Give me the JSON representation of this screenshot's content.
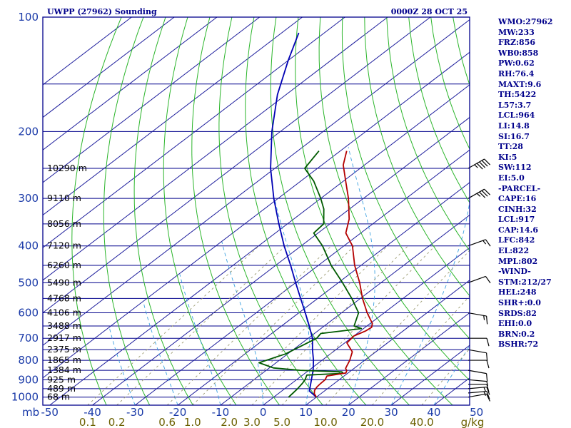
{
  "header": {
    "station": "UWPP (27962) Sounding",
    "valid_time": "0000Z 28 OCT 25"
  },
  "indices": [
    "WMO:27962",
    "MW:233",
    "FRZ:856",
    "WB0:858",
    "PW:0.62",
    "RH:76.4",
    "MAXT:9.6",
    "TH:5422",
    "L57:3.7",
    "LCL:964",
    "LI:14.8",
    "SI:16.7",
    "TT:28",
    "KI:5",
    "SW:112",
    "EI:5.0",
    "-PARCEL-",
    "CAPE:16",
    "CINH:32",
    "LCL:917",
    "CAP:14.6",
    "LFC:842",
    "EL:822",
    "MPL:802",
    "-WIND-",
    "STM:212/27",
    "HEL:248",
    "SHR+:0.0",
    "SRDS:82",
    "EHI:0.0",
    "BRN:0.2",
    "BSHR:72"
  ],
  "axis": {
    "pressure_unit": "mb",
    "pressure_ticks": [
      "100",
      "200",
      "300",
      "400",
      "500",
      "600",
      "700",
      "800",
      "900",
      "1000"
    ],
    "temp_ticks": [
      "-50",
      "-40",
      "-30",
      "-20",
      "-10",
      "0",
      "10",
      "20",
      "30",
      "40",
      "50"
    ],
    "mixing_ratio_ticks": [
      "0.1",
      "0.2",
      "0.6",
      "1.0",
      "2.0",
      "3.0",
      "5.0",
      "10.0",
      "20.0",
      "40.0"
    ],
    "mixing_ratio_unit": "g/kg"
  },
  "colors": {
    "frame": "#00008b",
    "isobar": "#00008b",
    "isotherm": "#1e1e9c",
    "dry_adiabat": "#2bb52b",
    "moist_adiabat": "#3aa0e0",
    "mixing_ratio": "#9a9a70",
    "temperature": "#b40000",
    "dewpoint": "#005a00",
    "parcel": "#0000b4",
    "barbs": "#000000"
  },
  "chart_data": {
    "type": "skew-t",
    "title": "UWPP (27962) Sounding",
    "valid": "0000Z 28 OCT 25",
    "pressure_range_mb": [
      1050,
      100
    ],
    "temperature_range_c": [
      -50,
      50
    ],
    "height_labels": [
      {
        "p": 250,
        "label": "10290 m"
      },
      {
        "p": 300,
        "label": "9110 m"
      },
      {
        "p": 350,
        "label": "8056 m"
      },
      {
        "p": 400,
        "label": "7120 m"
      },
      {
        "p": 450,
        "label": "6260 m"
      },
      {
        "p": 500,
        "label": "5490 m"
      },
      {
        "p": 550,
        "label": "4768 m"
      },
      {
        "p": 600,
        "label": "4106 m"
      },
      {
        "p": 650,
        "label": "3488 m"
      },
      {
        "p": 700,
        "label": "2917 m"
      },
      {
        "p": 750,
        "label": "2375 m"
      },
      {
        "p": 800,
        "label": "1865 m"
      },
      {
        "p": 850,
        "label": "1384 m"
      },
      {
        "p": 900,
        "label": "925 m"
      },
      {
        "p": 950,
        "label": "489 m"
      },
      {
        "p": 1000,
        "label": "68 m"
      }
    ],
    "temperature_profile": [
      {
        "p": 1000,
        "t": 10.0
      },
      {
        "p": 980,
        "t": 8.5
      },
      {
        "p": 960,
        "t": 7.5
      },
      {
        "p": 940,
        "t": 7.0
      },
      {
        "p": 920,
        "t": 6.8
      },
      {
        "p": 900,
        "t": 6.7
      },
      {
        "p": 880,
        "t": 6.0
      },
      {
        "p": 864,
        "t": 9.5
      },
      {
        "p": 852,
        "t": 9.0
      },
      {
        "p": 840,
        "t": 8.0
      },
      {
        "p": 800,
        "t": 6.5
      },
      {
        "p": 760,
        "t": 4.5
      },
      {
        "p": 720,
        "t": 0.5
      },
      {
        "p": 690,
        "t": 0.0
      },
      {
        "p": 670,
        "t": 1.2
      },
      {
        "p": 655,
        "t": 1.5
      },
      {
        "p": 640,
        "t": 0.5
      },
      {
        "p": 600,
        "t": -4.0
      },
      {
        "p": 550,
        "t": -9.5
      },
      {
        "p": 500,
        "t": -15.0
      },
      {
        "p": 450,
        "t": -21.5
      },
      {
        "p": 400,
        "t": -28.0
      },
      {
        "p": 370,
        "t": -33.5
      },
      {
        "p": 340,
        "t": -37.0
      },
      {
        "p": 300,
        "t": -43.5
      },
      {
        "p": 270,
        "t": -49.5
      },
      {
        "p": 245,
        "t": -55.0
      },
      {
        "p": 225,
        "t": -58.5
      }
    ],
    "dewpoint_profile": [
      {
        "p": 1000,
        "t": 3.5
      },
      {
        "p": 970,
        "t": 3.2
      },
      {
        "p": 950,
        "t": 3.0
      },
      {
        "p": 920,
        "t": 2.5
      },
      {
        "p": 900,
        "t": 2.0
      },
      {
        "p": 875,
        "t": 1.0
      },
      {
        "p": 866,
        "t": 9.0
      },
      {
        "p": 858,
        "t": 8.2
      },
      {
        "p": 850,
        "t": -2.0
      },
      {
        "p": 838,
        "t": -9.0
      },
      {
        "p": 812,
        "t": -14.0
      },
      {
        "p": 770,
        "t": -10.5
      },
      {
        "p": 700,
        "t": -8.0
      },
      {
        "p": 680,
        "t": -8.5
      },
      {
        "p": 660,
        "t": -0.5
      },
      {
        "p": 650,
        "t": -3.0
      },
      {
        "p": 600,
        "t": -6.0
      },
      {
        "p": 550,
        "t": -12.0
      },
      {
        "p": 500,
        "t": -19.0
      },
      {
        "p": 450,
        "t": -27.0
      },
      {
        "p": 400,
        "t": -35.0
      },
      {
        "p": 370,
        "t": -41.0
      },
      {
        "p": 350,
        "t": -41.5
      },
      {
        "p": 320,
        "t": -46.0
      },
      {
        "p": 300,
        "t": -50.0
      },
      {
        "p": 270,
        "t": -57.0
      },
      {
        "p": 250,
        "t": -63.0
      },
      {
        "p": 225,
        "t": -65.0
      }
    ],
    "parcel_profile": [
      {
        "p": 1000,
        "t": 10.0
      },
      {
        "p": 964,
        "t": 6.5
      },
      {
        "p": 900,
        "t": 3.5
      },
      {
        "p": 850,
        "t": 1.0
      },
      {
        "p": 800,
        "t": -2.0
      },
      {
        "p": 750,
        "t": -5.5
      },
      {
        "p": 700,
        "t": -9.0
      },
      {
        "p": 650,
        "t": -13.5
      },
      {
        "p": 600,
        "t": -18.5
      },
      {
        "p": 550,
        "t": -24.0
      },
      {
        "p": 500,
        "t": -30.0
      },
      {
        "p": 450,
        "t": -36.5
      },
      {
        "p": 400,
        "t": -44.0
      },
      {
        "p": 350,
        "t": -52.0
      },
      {
        "p": 300,
        "t": -61.0
      },
      {
        "p": 250,
        "t": -71.0
      },
      {
        "p": 200,
        "t": -82.0
      },
      {
        "p": 160,
        "t": -92.0
      },
      {
        "p": 130,
        "t": -100.0
      },
      {
        "p": 110,
        "t": -106.0
      }
    ],
    "wind_profile": [
      {
        "p": 1000,
        "dir_deg": 80,
        "speed_kt": 10
      },
      {
        "p": 975,
        "dir_deg": 85,
        "speed_kt": 15
      },
      {
        "p": 950,
        "dir_deg": 85,
        "speed_kt": 15
      },
      {
        "p": 925,
        "dir_deg": 90,
        "speed_kt": 10
      },
      {
        "p": 900,
        "dir_deg": 95,
        "speed_kt": 5
      },
      {
        "p": 850,
        "dir_deg": 100,
        "speed_kt": 10
      },
      {
        "p": 800,
        "dir_deg": 90,
        "speed_kt": 10
      },
      {
        "p": 750,
        "dir_deg": 100,
        "speed_kt": 10
      },
      {
        "p": 700,
        "dir_deg": 90,
        "speed_kt": 10
      },
      {
        "p": 600,
        "dir_deg": 100,
        "speed_kt": 15
      },
      {
        "p": 500,
        "dir_deg": 70,
        "speed_kt": 10
      },
      {
        "p": 400,
        "dir_deg": 70,
        "speed_kt": 15
      },
      {
        "p": 300,
        "dir_deg": 60,
        "speed_kt": 35
      },
      {
        "p": 250,
        "dir_deg": 60,
        "speed_kt": 45
      }
    ]
  }
}
